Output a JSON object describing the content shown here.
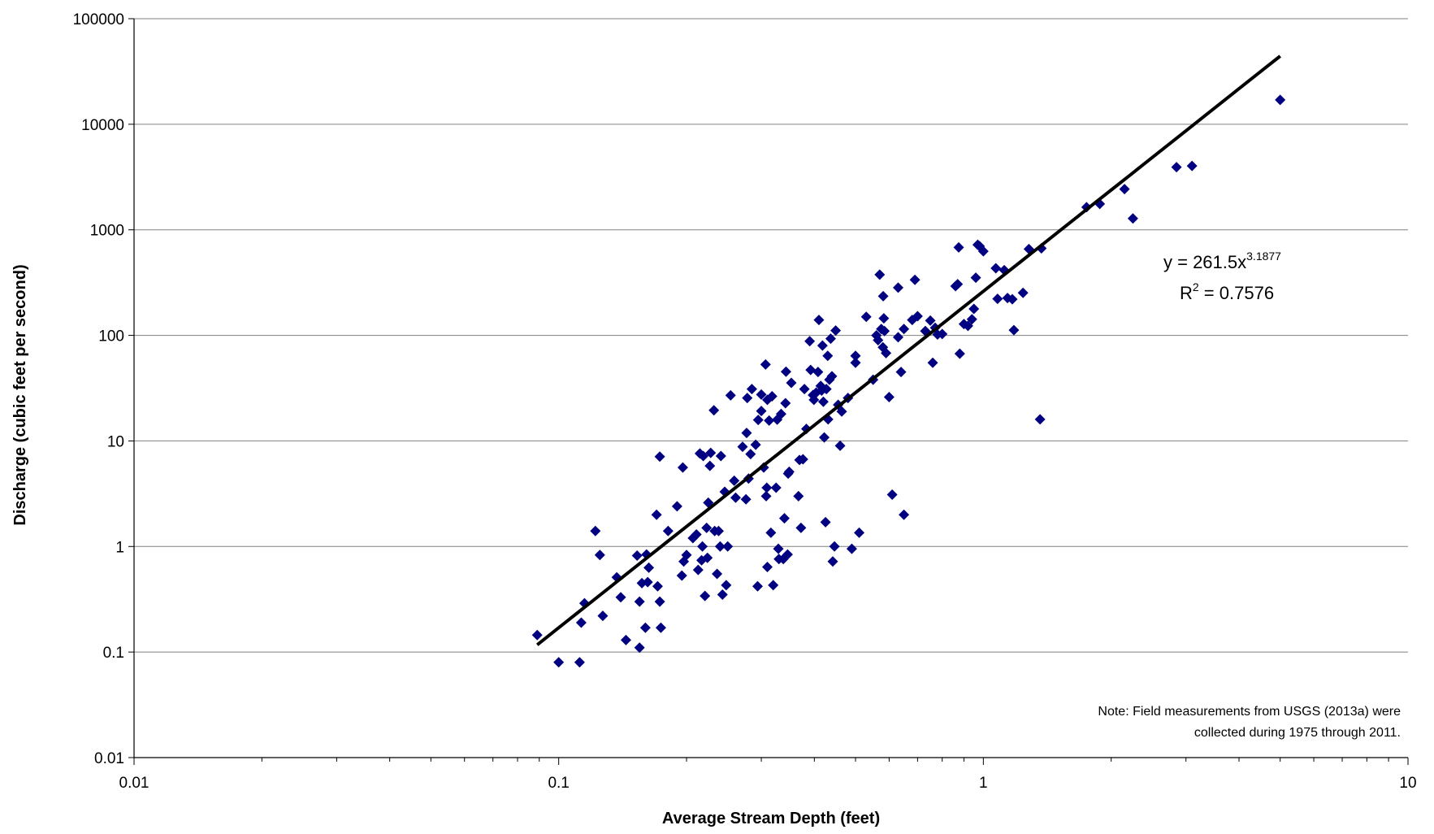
{
  "chart_data": {
    "type": "scatter",
    "title": "",
    "xlabel": "Average Stream Depth (feet)",
    "ylabel": "Discharge (cubic feet per second)",
    "xscale": "log",
    "yscale": "log",
    "xlim": [
      0.01,
      10
    ],
    "ylim": [
      0.01,
      100000
    ],
    "x_ticks": [
      "0.01",
      "0.1",
      "1",
      "10"
    ],
    "y_ticks": [
      "0.01",
      "0.1",
      "1",
      "10",
      "100",
      "1000",
      "10000",
      "100000"
    ],
    "grid": "horizontal major gridlines",
    "marker": "diamond",
    "colors": {
      "points": "#000080",
      "trendline": "#000000",
      "grid": "#808080"
    },
    "series": [
      {
        "points": [
          [
            0.089,
            0.145
          ],
          [
            0.1,
            0.08
          ],
          [
            0.112,
            0.08
          ],
          [
            0.113,
            0.19
          ],
          [
            0.115,
            0.29
          ],
          [
            0.122,
            1.4
          ],
          [
            0.125,
            0.83
          ],
          [
            0.127,
            0.22
          ],
          [
            0.137,
            0.51
          ],
          [
            0.14,
            0.33
          ],
          [
            0.144,
            0.13
          ],
          [
            0.153,
            0.82
          ],
          [
            0.155,
            0.3
          ],
          [
            0.155,
            0.11
          ],
          [
            0.157,
            0.45
          ],
          [
            0.16,
            0.17
          ],
          [
            0.161,
            0.84
          ],
          [
            0.162,
            0.46
          ],
          [
            0.163,
            0.63
          ],
          [
            0.17,
            2.0
          ],
          [
            0.171,
            0.42
          ],
          [
            0.173,
            7.1
          ],
          [
            0.173,
            0.3
          ],
          [
            0.174,
            0.17
          ],
          [
            0.181,
            1.4
          ],
          [
            0.19,
            2.4
          ],
          [
            0.195,
            0.53
          ],
          [
            0.196,
            5.6
          ],
          [
            0.197,
            0.72
          ],
          [
            0.2,
            0.83
          ],
          [
            0.207,
            1.2
          ],
          [
            0.211,
            1.3
          ],
          [
            0.213,
            0.6
          ],
          [
            0.215,
            7.6
          ],
          [
            0.217,
            0.74
          ],
          [
            0.218,
            1.0
          ],
          [
            0.219,
            7.2
          ],
          [
            0.221,
            0.34
          ],
          [
            0.223,
            1.5
          ],
          [
            0.224,
            0.78
          ],
          [
            0.225,
            2.6
          ],
          [
            0.227,
            5.8
          ],
          [
            0.228,
            7.7
          ],
          [
            0.232,
            19.5
          ],
          [
            0.233,
            1.4
          ],
          [
            0.236,
            0.55
          ],
          [
            0.238,
            1.4
          ],
          [
            0.24,
            1.0
          ],
          [
            0.241,
            7.2
          ],
          [
            0.243,
            0.35
          ],
          [
            0.246,
            3.3
          ],
          [
            0.248,
            0.43
          ],
          [
            0.25,
            1.0
          ],
          [
            0.254,
            27.0
          ],
          [
            0.259,
            4.2
          ],
          [
            0.261,
            2.9
          ],
          [
            0.271,
            8.8
          ],
          [
            0.276,
            2.8
          ],
          [
            0.277,
            11.9
          ],
          [
            0.278,
            25.5
          ],
          [
            0.28,
            4.4
          ],
          [
            0.283,
            7.5
          ],
          [
            0.285,
            31.0
          ],
          [
            0.291,
            9.2
          ],
          [
            0.294,
            0.42
          ],
          [
            0.295,
            15.8
          ],
          [
            0.3,
            27.5
          ],
          [
            0.3,
            19.2
          ],
          [
            0.304,
            5.6
          ],
          [
            0.307,
            53.0
          ],
          [
            0.308,
            3.0
          ],
          [
            0.309,
            3.6
          ],
          [
            0.31,
            0.64
          ],
          [
            0.31,
            24.5
          ],
          [
            0.313,
            15.6
          ],
          [
            0.316,
            1.35
          ],
          [
            0.318,
            26.5
          ],
          [
            0.32,
            0.43
          ],
          [
            0.325,
            3.6
          ],
          [
            0.327,
            15.9
          ],
          [
            0.329,
            0.95
          ],
          [
            0.33,
            0.76
          ],
          [
            0.334,
            18.0
          ],
          [
            0.338,
            0.76
          ],
          [
            0.34,
            1.85
          ],
          [
            0.342,
            22.8
          ],
          [
            0.343,
            45.3
          ],
          [
            0.346,
            0.84
          ],
          [
            0.347,
            4.9
          ],
          [
            0.349,
            5.1
          ],
          [
            0.353,
            35.5
          ],
          [
            0.367,
            3.0
          ],
          [
            0.369,
            6.6
          ],
          [
            0.372,
            1.5
          ],
          [
            0.376,
            6.7
          ],
          [
            0.379,
            31.0
          ],
          [
            0.383,
            13.0
          ],
          [
            0.39,
            88.0
          ],
          [
            0.392,
            47.0
          ],
          [
            0.397,
            27.2
          ],
          [
            0.399,
            24.5
          ],
          [
            0.404,
            28.7
          ],
          [
            0.408,
            45.0
          ],
          [
            0.41,
            140.0
          ],
          [
            0.414,
            33.2
          ],
          [
            0.416,
            30.0
          ],
          [
            0.418,
            80.0
          ],
          [
            0.42,
            23.5
          ],
          [
            0.422,
            10.8
          ],
          [
            0.425,
            1.7
          ],
          [
            0.427,
            31.0
          ],
          [
            0.43,
            64.0
          ],
          [
            0.431,
            16.0
          ],
          [
            0.434,
            38.0
          ],
          [
            0.437,
            93.0
          ],
          [
            0.44,
            41.0
          ],
          [
            0.442,
            0.72
          ],
          [
            0.446,
            1.0
          ],
          [
            0.449,
            111.0
          ],
          [
            0.455,
            22.0
          ],
          [
            0.46,
            9.0
          ],
          [
            0.464,
            19.0
          ],
          [
            0.48,
            25.5
          ],
          [
            0.49,
            0.95
          ],
          [
            0.5,
            55.0
          ],
          [
            0.5,
            64.0
          ],
          [
            0.51,
            1.35
          ],
          [
            0.53,
            150.0
          ],
          [
            0.55,
            38.0
          ],
          [
            0.56,
            100.0
          ],
          [
            0.565,
            90.0
          ],
          [
            0.57,
            376.0
          ],
          [
            0.575,
            115.0
          ],
          [
            0.58,
            77.0
          ],
          [
            0.581,
            235.0
          ],
          [
            0.583,
            145.0
          ],
          [
            0.585,
            110.0
          ],
          [
            0.59,
            68.0
          ],
          [
            0.6,
            26.0
          ],
          [
            0.61,
            3.1
          ],
          [
            0.63,
            283.0
          ],
          [
            0.63,
            96.0
          ],
          [
            0.64,
            45.0
          ],
          [
            0.65,
            2.0
          ],
          [
            0.65,
            115.0
          ],
          [
            0.68,
            140.0
          ],
          [
            0.69,
            336.0
          ],
          [
            0.7,
            152.0
          ],
          [
            0.73,
            110.0
          ],
          [
            0.75,
            138.0
          ],
          [
            0.76,
            55.0
          ],
          [
            0.77,
            118.0
          ],
          [
            0.78,
            102.0
          ],
          [
            0.8,
            103.0
          ],
          [
            0.86,
            293.0
          ],
          [
            0.87,
            305.0
          ],
          [
            0.875,
            681.0
          ],
          [
            0.88,
            67.0
          ],
          [
            0.9,
            128.0
          ],
          [
            0.92,
            123.0
          ],
          [
            0.94,
            142.0
          ],
          [
            0.95,
            178.0
          ],
          [
            0.96,
            352.0
          ],
          [
            0.97,
            722.0
          ],
          [
            0.98,
            700.0
          ],
          [
            1.0,
            626.0
          ],
          [
            1.07,
            432.0
          ],
          [
            1.08,
            222.0
          ],
          [
            1.12,
            415.0
          ],
          [
            1.14,
            226.0
          ],
          [
            1.17,
            220.0
          ],
          [
            1.18,
            112.0
          ],
          [
            1.24,
            253.0
          ],
          [
            1.28,
            657.0
          ],
          [
            1.36,
            16.0
          ],
          [
            1.37,
            668.0
          ],
          [
            1.75,
            1640.0
          ],
          [
            1.88,
            1760.0
          ],
          [
            2.15,
            2430.0
          ],
          [
            2.25,
            1280.0
          ],
          [
            2.85,
            3920.0
          ],
          [
            3.1,
            4030.0
          ],
          [
            5.0,
            17000.0
          ]
        ]
      }
    ],
    "trendline": {
      "type": "power",
      "coefficient": 261.5,
      "exponent": 3.1877,
      "x_range": [
        0.089,
        5.0
      ],
      "equation_label": "y = 261.5x",
      "equation_exponent": "3.1877",
      "r2_label_prefix": "R",
      "r2_label_sup": "2",
      "r2_label_value": " = 0.7576"
    },
    "note_lines": [
      "Note: Field measurements from USGS (2013a) were",
      "collected during 1975 through 2011."
    ]
  }
}
